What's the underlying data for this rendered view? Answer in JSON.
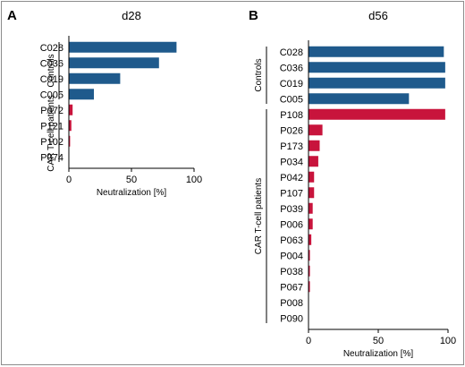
{
  "colors": {
    "controls": "#1f5a8c",
    "patients": "#c8143c",
    "axis": "#000000"
  },
  "chart_data": [
    {
      "type": "bar",
      "orientation": "horizontal",
      "panel": "A",
      "title": "d28",
      "xlabel": "Neutralization [%]",
      "xlim": [
        0,
        100
      ],
      "xticks": [
        0,
        50,
        100
      ],
      "groups": [
        {
          "name": "Controls",
          "categories": [
            "C028",
            "C036",
            "C019",
            "C005"
          ],
          "values": [
            86,
            72,
            41,
            20
          ]
        },
        {
          "name": "CAR T-cell patients",
          "categories": [
            "P072",
            "P121",
            "P102",
            "P074"
          ],
          "values": [
            3,
            2,
            1,
            0
          ]
        }
      ]
    },
    {
      "type": "bar",
      "orientation": "horizontal",
      "panel": "B",
      "title": "d56",
      "xlabel": "Neutralization [%]",
      "xlim": [
        0,
        100
      ],
      "xticks": [
        0,
        50,
        100
      ],
      "groups": [
        {
          "name": "Controls",
          "categories": [
            "C028",
            "C036",
            "C019",
            "C005"
          ],
          "values": [
            97,
            98,
            98,
            72
          ]
        },
        {
          "name": "CAR T-cell patients",
          "categories": [
            "P108",
            "P026",
            "P173",
            "P034",
            "P042",
            "P107",
            "P039",
            "P006",
            "P063",
            "P004",
            "P038",
            "P067",
            "P008",
            "P090"
          ],
          "values": [
            98,
            10,
            8,
            7,
            4,
            4,
            3,
            3,
            2,
            1,
            1,
            1,
            0,
            0
          ]
        }
      ]
    }
  ]
}
